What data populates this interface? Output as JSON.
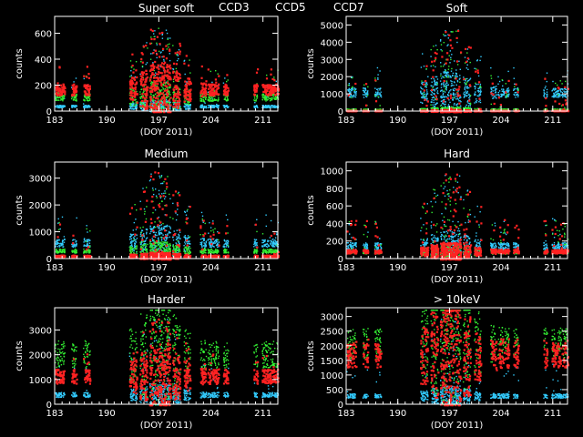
{
  "legend": [
    {
      "name": "CCD3",
      "color": "#33ccff"
    },
    {
      "name": "CCD5",
      "color": "#33ee33"
    },
    {
      "name": "CCD7",
      "color": "#ff2222"
    }
  ],
  "chart_data": [
    {
      "type": "scatter",
      "title": "Super soft",
      "xlabel": "(DOY 2011)",
      "ylabel": "counts",
      "xlim": [
        183,
        213
      ],
      "ylim": [
        0,
        730
      ],
      "xticks": [
        183,
        190,
        197,
        204,
        211
      ],
      "yticks": [
        0,
        200,
        400,
        600
      ],
      "ccd3_level": 40,
      "ccd5_level": 110,
      "ccd7_level": 170,
      "peak": 650
    },
    {
      "type": "scatter",
      "title": "Soft",
      "xlabel": "(DOY 2011)",
      "ylabel": "counts",
      "xlim": [
        183,
        213
      ],
      "ylim": [
        0,
        5500
      ],
      "xticks": [
        183,
        190,
        197,
        204,
        211
      ],
      "yticks": [
        0,
        1000,
        2000,
        3000,
        4000,
        5000
      ],
      "ccd3_level": 1100,
      "ccd5_level": 120,
      "ccd7_level": 60,
      "peak": 4800
    },
    {
      "type": "scatter",
      "title": "Medium",
      "xlabel": "(DOY 2011)",
      "ylabel": "counts",
      "xlim": [
        183,
        213
      ],
      "ylim": [
        0,
        3600
      ],
      "xticks": [
        183,
        190,
        197,
        204,
        211
      ],
      "yticks": [
        0,
        1000,
        2000,
        3000
      ],
      "ccd3_level": 600,
      "ccd5_level": 300,
      "ccd7_level": 120,
      "peak": 3300
    },
    {
      "type": "scatter",
      "title": "Hard",
      "xlabel": "(DOY 2011)",
      "ylabel": "counts",
      "xlim": [
        183,
        213
      ],
      "ylim": [
        0,
        1100
      ],
      "xticks": [
        183,
        190,
        197,
        204,
        211
      ],
      "yticks": [
        0,
        200,
        400,
        600,
        800,
        1000
      ],
      "ccd3_level": 150,
      "ccd5_level": 80,
      "ccd7_level": 90,
      "peak": 980
    },
    {
      "type": "scatter",
      "title": "Harder",
      "xlabel": "(DOY 2011)",
      "ylabel": "counts",
      "xlim": [
        183,
        213
      ],
      "ylim": [
        0,
        3900
      ],
      "xticks": [
        183,
        190,
        197,
        204,
        211
      ],
      "yticks": [
        0,
        1000,
        2000,
        3000
      ],
      "ccd3_level": 400,
      "ccd5_level": 2000,
      "ccd7_level": 1150,
      "peak": 3500
    },
    {
      "type": "scatter",
      "title": "> 10keV",
      "xlabel": "(DOY 2011)",
      "ylabel": "counts",
      "xlim": [
        183,
        213
      ],
      "ylim": [
        0,
        3300
      ],
      "xticks": [
        183,
        190,
        197,
        204,
        211
      ],
      "yticks": [
        0,
        500,
        1000,
        1500,
        2000,
        2500,
        3000
      ],
      "ccd3_level": 300,
      "ccd5_level": 2100,
      "ccd7_level": 1700,
      "peak": 3100
    }
  ]
}
